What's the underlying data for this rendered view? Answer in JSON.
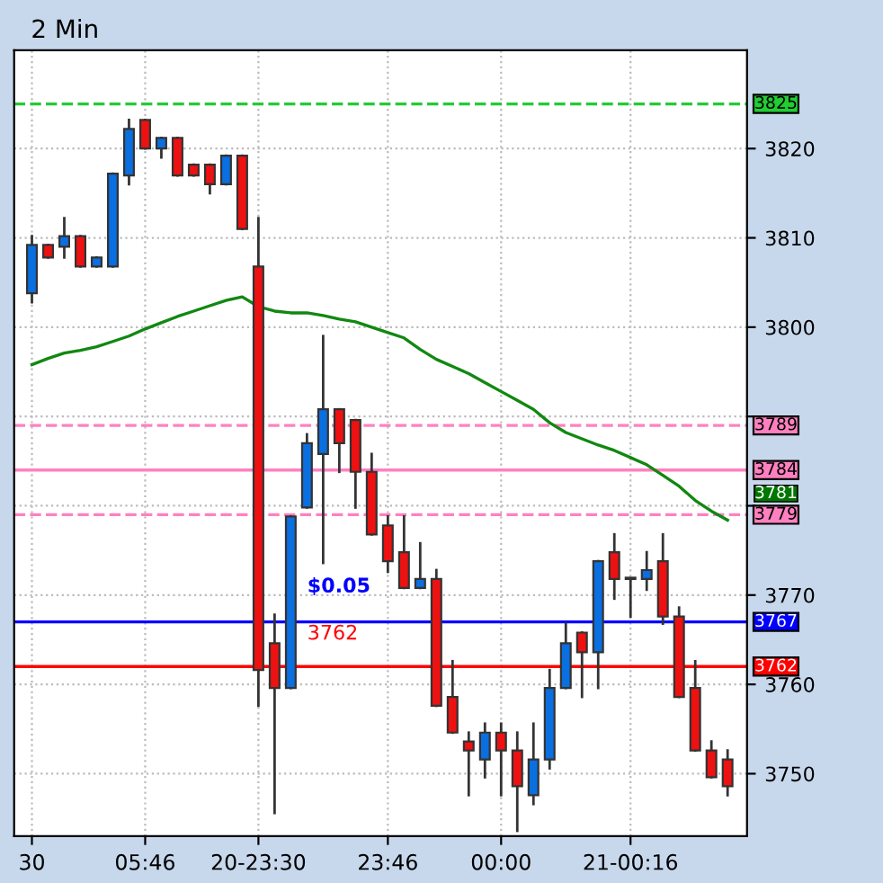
{
  "chart_data": {
    "type": "candlestick",
    "title": "2 Min",
    "categories": [
      "30",
      null,
      null,
      null,
      null,
      null,
      null,
      "05:46",
      null,
      null,
      null,
      null,
      null,
      null,
      "20-23:30",
      null,
      null,
      null,
      null,
      null,
      null,
      null,
      "23:46",
      null,
      null,
      null,
      null,
      null,
      null,
      "00:00",
      null,
      null,
      null,
      null,
      null,
      null,
      null,
      "21-00:16",
      null,
      null,
      null,
      null,
      null,
      null
    ],
    "ohlc": [
      [
        3803.8,
        3810.2,
        3802.8,
        3809.2
      ],
      [
        3809.2,
        3809.2,
        3807.8,
        3807.8
      ],
      [
        3809.0,
        3812.2,
        3807.8,
        3810.2
      ],
      [
        3810.2,
        3810.2,
        3806.8,
        3806.8
      ],
      [
        3806.8,
        3807.8,
        3806.8,
        3807.8
      ],
      [
        3806.8,
        3817.2,
        3806.8,
        3817.2
      ],
      [
        3817.0,
        3823.2,
        3816.0,
        3822.2
      ],
      [
        3823.2,
        3823.2,
        3820.0,
        3820.0
      ],
      [
        3820.0,
        3821.2,
        3819.0,
        3821.2
      ],
      [
        3821.2,
        3821.2,
        3817.0,
        3817.0
      ],
      [
        3818.2,
        3818.2,
        3817.0,
        3817.0
      ],
      [
        3818.2,
        3818.2,
        3815.0,
        3816.0
      ],
      [
        3816.0,
        3819.2,
        3816.0,
        3819.2
      ],
      [
        3819.2,
        3819.2,
        3811.0,
        3811.0
      ],
      [
        3806.8,
        3812.2,
        3757.6,
        3761.6
      ],
      [
        3764.6,
        3767.8,
        3745.6,
        3759.6
      ],
      [
        3759.6,
        3778.8,
        3759.6,
        3778.8
      ],
      [
        3779.8,
        3788.0,
        3779.8,
        3787.0
      ],
      [
        3785.8,
        3799.0,
        3773.6,
        3790.8
      ],
      [
        3790.8,
        3790.8,
        3783.8,
        3787.0
      ],
      [
        3789.6,
        3789.6,
        3779.8,
        3783.8
      ],
      [
        3783.8,
        3785.8,
        3776.8,
        3776.8
      ],
      [
        3777.8,
        3778.8,
        3772.6,
        3773.8
      ],
      [
        3774.8,
        3778.8,
        3770.8,
        3770.8
      ],
      [
        3770.8,
        3775.8,
        3770.8,
        3771.8
      ],
      [
        3771.8,
        3772.8,
        3757.6,
        3757.6
      ],
      [
        3758.6,
        3762.6,
        3754.6,
        3754.6
      ],
      [
        3753.6,
        3754.6,
        3747.6,
        3752.6
      ],
      [
        3751.6,
        3755.6,
        3749.6,
        3754.6
      ],
      [
        3754.6,
        3755.6,
        3747.6,
        3752.6
      ],
      [
        3752.6,
        3754.6,
        3743.6,
        3748.6
      ],
      [
        3747.6,
        3755.6,
        3746.6,
        3751.6
      ],
      [
        3751.6,
        3761.6,
        3750.6,
        3759.6
      ],
      [
        3759.6,
        3766.8,
        3759.6,
        3764.6
      ],
      [
        3765.8,
        3765.8,
        3758.6,
        3763.6
      ],
      [
        3763.6,
        3773.8,
        3759.6,
        3773.8
      ],
      [
        3774.8,
        3776.8,
        3769.6,
        3771.8
      ],
      [
        3771.8,
        3771.8,
        3767.6,
        3771.8
      ],
      [
        3771.8,
        3774.8,
        3770.6,
        3772.8
      ],
      [
        3773.8,
        3776.8,
        3766.8,
        3767.6
      ],
      [
        3767.6,
        3768.6,
        3758.6,
        3758.6
      ],
      [
        3759.6,
        3762.6,
        3752.6,
        3752.6
      ],
      [
        3752.6,
        3753.6,
        3749.6,
        3749.6
      ],
      [
        3751.6,
        3752.6,
        3747.6,
        3748.6
      ]
    ],
    "colors": [
      "#0a6fe0",
      "#ee1111",
      "#0a6fe0",
      "#ee1111",
      "#0a6fe0",
      "#0a6fe0",
      "#0a6fe0",
      "#ee1111",
      "#0a6fe0",
      "#ee1111",
      "#ee1111",
      "#ee1111",
      "#0a6fe0",
      "#ee1111",
      "#ee1111",
      "#ee1111",
      "#0a6fe0",
      "#0a6fe0",
      "#0a6fe0",
      "#ee1111",
      "#ee1111",
      "#ee1111",
      "#ee1111",
      "#ee1111",
      "#0a6fe0",
      "#ee1111",
      "#ee1111",
      "#ee1111",
      "#0a6fe0",
      "#ee1111",
      "#ee1111",
      "#0a6fe0",
      "#0a6fe0",
      "#0a6fe0",
      "#ee1111",
      "#0a6fe0",
      "#ee1111",
      "#ee1111",
      "#0a6fe0",
      "#ee1111",
      "#ee1111",
      "#ee1111",
      "#ee1111",
      "#ee1111"
    ],
    "series": [
      {
        "type": "line",
        "color": "#118811",
        "values": [
          3795.8,
          3796.5,
          3797.1,
          3797.4,
          3797.8,
          3798.4,
          3799.0,
          3799.8,
          3800.5,
          3801.2,
          3801.8,
          3802.4,
          3803.0,
          3803.4,
          3802.3,
          3801.8,
          3801.6,
          3801.6,
          3801.3,
          3800.9,
          3800.6,
          3800.0,
          3799.4,
          3798.8,
          3797.5,
          3796.4,
          3795.6,
          3794.8,
          3793.8,
          3792.8,
          3791.8,
          3790.8,
          3789.3,
          3788.2,
          3787.5,
          3786.8,
          3786.2,
          3785.4,
          3784.6,
          3783.4,
          3782.2,
          3780.6,
          3779.4,
          3778.4
        ]
      }
    ],
    "ref_lines": [
      {
        "axis": "y",
        "value": 3825,
        "label": "3825",
        "color": "#22cc33",
        "line_style": "dashed"
      },
      {
        "axis": "y",
        "value": 3789,
        "label": "3789",
        "color": "#ff80c0",
        "line_style": "dashed"
      },
      {
        "axis": "y",
        "value": 3784,
        "label": "3784",
        "color": "#ff80c0",
        "line_style": "solid"
      },
      {
        "axis": "y",
        "value": 3779,
        "label": "3779",
        "color": "#ff80c0",
        "line_style": "dashed"
      },
      {
        "axis": "y",
        "value": 3767,
        "label": "3767",
        "color": "#0000ff",
        "line_style": "solid"
      },
      {
        "axis": "y",
        "value": 3762,
        "label": "3762",
        "color": "#ff0000",
        "line_style": "solid"
      }
    ],
    "annotations": [
      "$0.05",
      "3762",
      "3781"
    ],
    "ylim": [
      3743,
      3831
    ],
    "yticks": [
      3750,
      3760,
      3770,
      {
        "value": 3780,
        "label": null
      },
      {
        "value": 3790,
        "label": null
      },
      3800,
      3810,
      3820
    ],
    "grid": true
  }
}
